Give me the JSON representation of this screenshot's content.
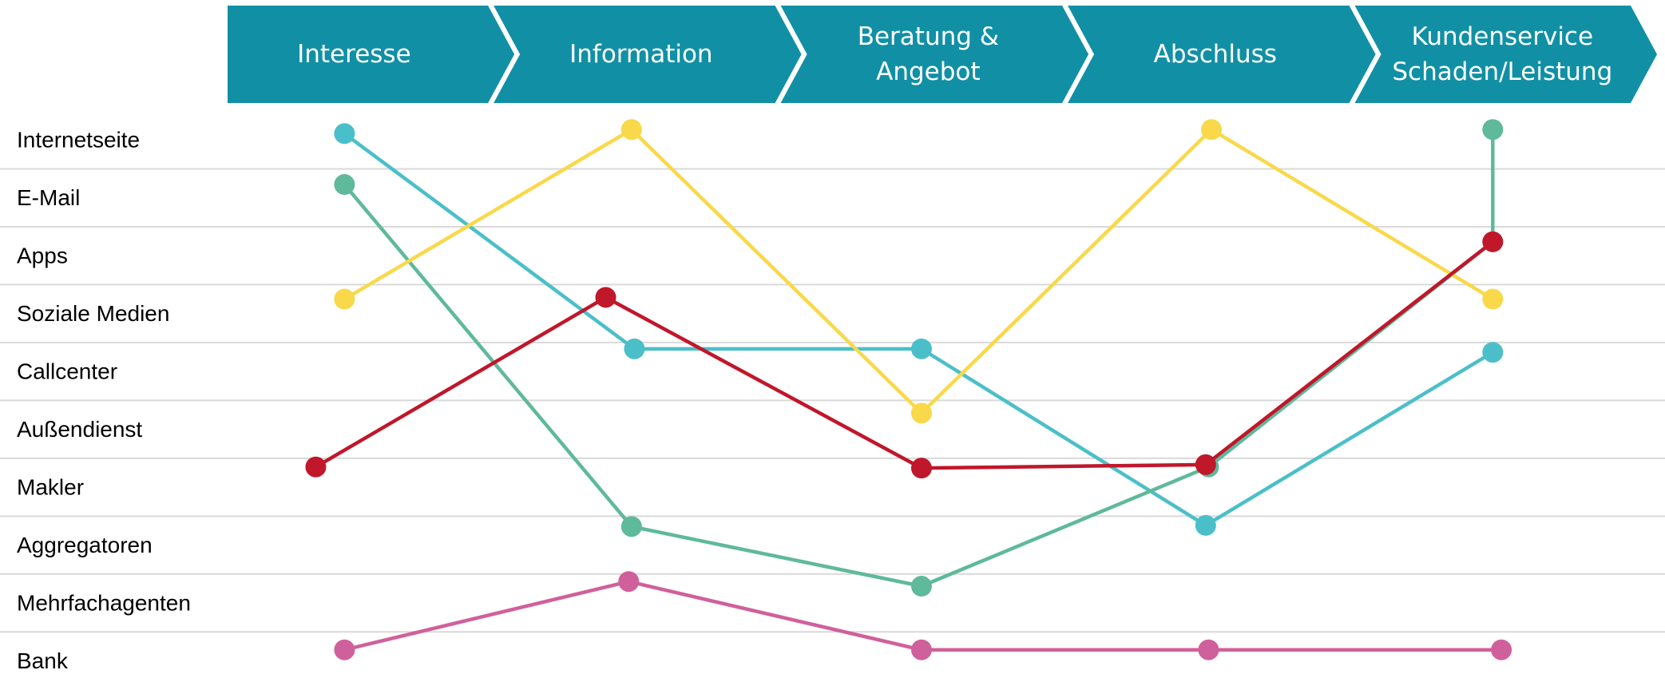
{
  "chart_data": {
    "type": "line",
    "xlim": [
      -1.2,
      4.6
    ],
    "xticks": [
      {
        "value": 0,
        "label": "Interesse"
      },
      {
        "value": 1,
        "label": "Information"
      },
      {
        "value": 2,
        "label": "Beratung &\nAngebot"
      },
      {
        "value": 3,
        "label": "Abschluss"
      },
      {
        "value": 4,
        "label": "Kundenservice\nSchaden/Leistung"
      }
    ],
    "ylim": [
      -0.5,
      9.2
    ],
    "yticks": [
      {
        "value": 0,
        "label": "Internetseite"
      },
      {
        "value": 1,
        "label": "E-Mail"
      },
      {
        "value": 2,
        "label": "Apps"
      },
      {
        "value": 3,
        "label": "Soziale Medien"
      },
      {
        "value": 4,
        "label": "Callcenter"
      },
      {
        "value": 5,
        "label": "Außendienst"
      },
      {
        "value": 6,
        "label": "Makler"
      },
      {
        "value": 7,
        "label": "Aggregatoren"
      },
      {
        "value": 8,
        "label": "Mehrfachagenten"
      },
      {
        "value": 9,
        "label": "Bank"
      }
    ],
    "grid": true,
    "series": [
      {
        "color": "#4bbfc9",
        "x": [
          0,
          1.01,
          2.01,
          3.0,
          4.0
        ],
        "values": [
          -0.11,
          3.61,
          3.61,
          6.66,
          3.67
        ]
      },
      {
        "color": "#5fb99b",
        "x": [
          0,
          1.0,
          2.01,
          3.01,
          4.0,
          4.0
        ],
        "values": [
          0.77,
          6.68,
          7.71,
          5.65,
          1.76,
          -0.18
        ]
      },
      {
        "color": "#f9d84a",
        "x": [
          0,
          1.0,
          2.01,
          3.02,
          4.0
        ],
        "values": [
          2.75,
          -0.18,
          4.72,
          -0.18,
          2.75
        ]
      },
      {
        "color": "#c0172b",
        "x": [
          -0.1,
          0.91,
          2.01,
          3.0,
          4.0
        ],
        "values": [
          5.65,
          2.72,
          5.67,
          5.61,
          1.76
        ]
      },
      {
        "color": "#d0609b",
        "x": [
          0,
          0.99,
          2.01,
          3.01,
          4.03
        ],
        "values": [
          8.81,
          7.63,
          8.81,
          8.81,
          8.81
        ]
      }
    ]
  }
}
